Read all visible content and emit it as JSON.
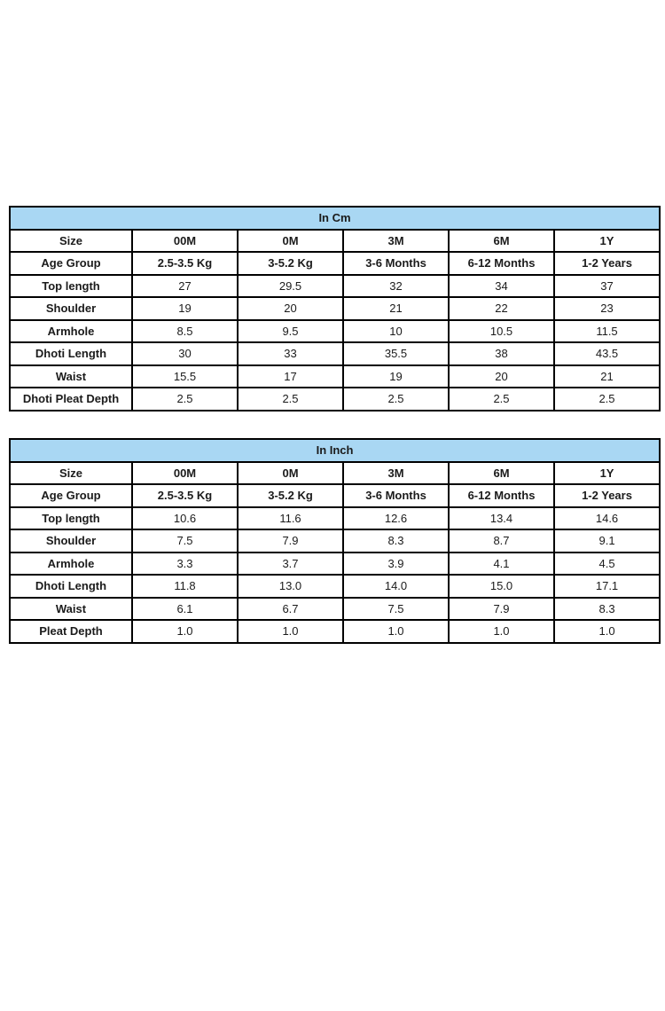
{
  "colors": {
    "title_fill": "#a9d7f3",
    "border": "#000000",
    "text": "#1b1b1b",
    "page_background": "#ffffff"
  },
  "tables": [
    {
      "title": "In Cm",
      "header_rows": [
        {
          "label": "Size",
          "values": [
            "00M",
            "0M",
            "3M",
            "6M",
            "1Y"
          ]
        },
        {
          "label": "Age Group",
          "values": [
            "2.5-3.5 Kg",
            "3-5.2 Kg",
            "3-6 Months",
            "6-12 Months",
            "1-2 Years"
          ]
        }
      ],
      "rows": [
        {
          "label": "Top length",
          "values": [
            "27",
            "29.5",
            "32",
            "34",
            "37"
          ]
        },
        {
          "label": "Shoulder",
          "values": [
            "19",
            "20",
            "21",
            "22",
            "23"
          ]
        },
        {
          "label": "Armhole",
          "values": [
            "8.5",
            "9.5",
            "10",
            "10.5",
            "11.5"
          ]
        },
        {
          "label": "Dhoti Length",
          "values": [
            "30",
            "33",
            "35.5",
            "38",
            "43.5"
          ]
        },
        {
          "label": "Waist",
          "values": [
            "15.5",
            "17",
            "19",
            "20",
            "21"
          ]
        },
        {
          "label": "Dhoti Pleat Depth",
          "values": [
            "2.5",
            "2.5",
            "2.5",
            "2.5",
            "2.5"
          ]
        }
      ]
    },
    {
      "title": "In Inch",
      "header_rows": [
        {
          "label": "Size",
          "values": [
            "00M",
            "0M",
            "3M",
            "6M",
            "1Y"
          ]
        },
        {
          "label": "Age Group",
          "values": [
            "2.5-3.5 Kg",
            "3-5.2 Kg",
            "3-6 Months",
            "6-12 Months",
            "1-2 Years"
          ]
        }
      ],
      "rows": [
        {
          "label": "Top length",
          "values": [
            "10.6",
            "11.6",
            "12.6",
            "13.4",
            "14.6"
          ]
        },
        {
          "label": "Shoulder",
          "values": [
            "7.5",
            "7.9",
            "8.3",
            "8.7",
            "9.1"
          ]
        },
        {
          "label": "Armhole",
          "values": [
            "3.3",
            "3.7",
            "3.9",
            "4.1",
            "4.5"
          ]
        },
        {
          "label": "Dhoti Length",
          "values": [
            "11.8",
            "13.0",
            "14.0",
            "15.0",
            "17.1"
          ]
        },
        {
          "label": "Waist",
          "values": [
            "6.1",
            "6.7",
            "7.5",
            "7.9",
            "8.3"
          ]
        },
        {
          "label": "Pleat Depth",
          "values": [
            "1.0",
            "1.0",
            "1.0",
            "1.0",
            "1.0"
          ]
        }
      ]
    }
  ]
}
